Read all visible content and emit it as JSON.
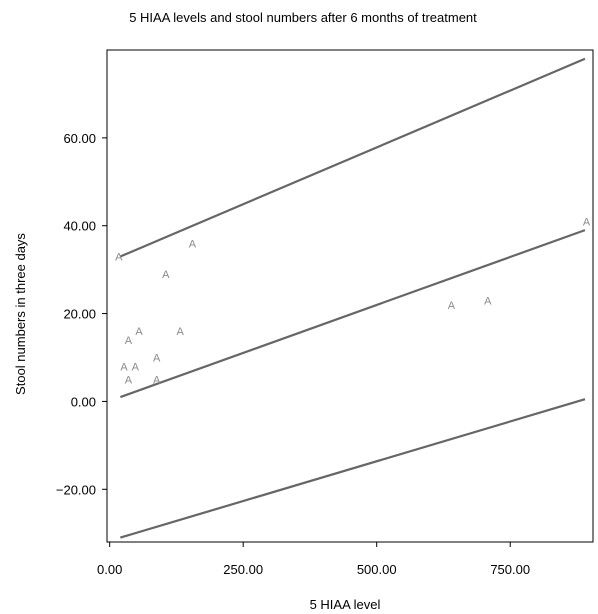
{
  "chart_data": {
    "type": "scatter",
    "title": "5 HIAA levels and stool numbers after 6 months of treatment",
    "xlabel": "5 HIAA level",
    "ylabel": "Stool numbers in three days",
    "xlim": [
      -5,
      905
    ],
    "ylim": [
      -32,
      80
    ],
    "xticks": [
      0,
      250,
      500,
      750
    ],
    "xtick_labels": [
      "0.00",
      "250.00",
      "500.00",
      "750.00"
    ],
    "yticks": [
      -20,
      0,
      20,
      40,
      60
    ],
    "ytick_labels": [
      "−20.00",
      "0.00",
      "20.00",
      "40.00",
      "60.00"
    ],
    "grid": false,
    "legend": "none",
    "marker_label": "A",
    "points": [
      {
        "x": 17,
        "y": 33
      },
      {
        "x": 27,
        "y": 8
      },
      {
        "x": 35,
        "y": 14
      },
      {
        "x": 35,
        "y": 5
      },
      {
        "x": 48,
        "y": 8
      },
      {
        "x": 55,
        "y": 16
      },
      {
        "x": 88,
        "y": 10
      },
      {
        "x": 88,
        "y": 5
      },
      {
        "x": 105,
        "y": 29
      },
      {
        "x": 132,
        "y": 16
      },
      {
        "x": 155,
        "y": 36
      },
      {
        "x": 640,
        "y": 22
      },
      {
        "x": 708,
        "y": 23
      },
      {
        "x": 893,
        "y": 41
      }
    ],
    "lines": [
      {
        "x": [
          20,
          890
        ],
        "y": [
          33,
          78
        ]
      },
      {
        "x": [
          20,
          890
        ],
        "y": [
          1,
          39
        ]
      },
      {
        "x": [
          20,
          890
        ],
        "y": [
          -31,
          0.5
        ]
      }
    ],
    "colors": {
      "points": "#8a8a8a",
      "lines": "#666666",
      "axes": "#000000"
    }
  }
}
